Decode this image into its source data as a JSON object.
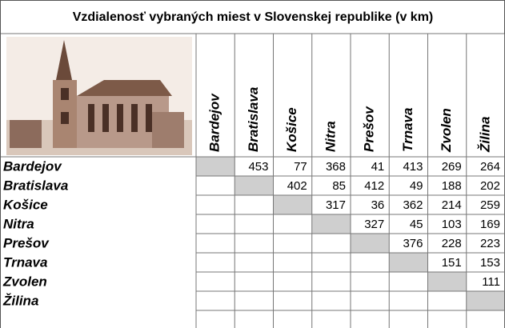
{
  "table": {
    "title": "Vzdialenosť vybraných miest v Slovenskej republike (v km)",
    "columns": [
      "Bardejov",
      "Bratislava",
      "Košice",
      "Nitra",
      "Prešov",
      "Trnava",
      "Zvolen",
      "Žilina"
    ],
    "rows": [
      {
        "label": "Bardejov",
        "values": [
          453,
          77,
          368,
          41,
          413,
          269,
          264
        ]
      },
      {
        "label": "Bratislava",
        "values": [
          402,
          85,
          412,
          49,
          188,
          202
        ]
      },
      {
        "label": "Košice",
        "values": [
          317,
          36,
          362,
          214,
          259
        ]
      },
      {
        "label": "Nitra",
        "values": [
          327,
          45,
          103,
          169
        ]
      },
      {
        "label": "Prešov",
        "values": [
          376,
          228,
          223
        ]
      },
      {
        "label": "Trnava",
        "values": [
          151,
          153
        ]
      },
      {
        "label": "Zvolen",
        "values": [
          111
        ]
      },
      {
        "label": "Žilina",
        "values": []
      }
    ]
  }
}
